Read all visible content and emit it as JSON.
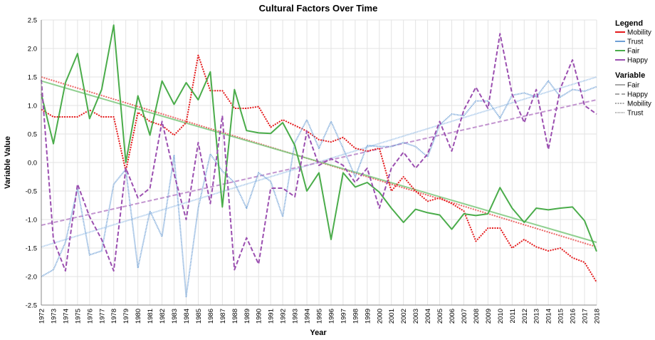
{
  "chart_data": {
    "type": "line",
    "title": "Cultural Factors Over Time",
    "xlabel": "Year",
    "ylabel": "Variable Value",
    "ylim": [
      -2.5,
      2.5
    ],
    "yticks": [
      2.5,
      2.0,
      1.5,
      1.0,
      0.5,
      0.0,
      -0.5,
      -1.0,
      -1.5,
      -2.0,
      -2.5
    ],
    "ytick_labels": [
      "2.5",
      "2.0",
      "1.5",
      "1.0",
      "0.5",
      "0.0",
      "-0.5",
      "-1.0",
      "-1.5",
      "-2.0",
      "-2.5"
    ],
    "x": [
      1972,
      1973,
      1974,
      1975,
      1976,
      1977,
      1978,
      1979,
      1980,
      1981,
      1982,
      1983,
      1984,
      1985,
      1986,
      1987,
      1988,
      1989,
      1990,
      1991,
      1992,
      1993,
      1994,
      1995,
      1996,
      1997,
      1998,
      1999,
      2000,
      2001,
      2002,
      2003,
      2004,
      2005,
      2006,
      2007,
      2008,
      2009,
      2010,
      2011,
      2012,
      2013,
      2014,
      2015,
      2016,
      2017,
      2018
    ],
    "grid": true,
    "legend_position": "right",
    "legend": {
      "title": "Legend",
      "entries": [
        {
          "label": "Mobility",
          "color": "#e41a1c"
        },
        {
          "label": "Trust",
          "color": "#6fa0d6"
        },
        {
          "label": "Fair",
          "color": "#4aac4a"
        },
        {
          "label": "Happy",
          "color": "#9b4fb0"
        }
      ]
    },
    "variable_legend": {
      "title": "Variable",
      "entries": [
        {
          "label": "Fair",
          "dash": "solid"
        },
        {
          "label": "Happy",
          "dash": "dashed"
        },
        {
          "label": "Mobility",
          "dash": "dotted"
        },
        {
          "label": "Trust",
          "dash": "dotted-fine"
        }
      ]
    },
    "series": [
      {
        "name": "Mobility",
        "color": "#e41a1c",
        "dash": "dotted",
        "values": [
          0.93,
          0.8,
          0.8,
          0.8,
          0.92,
          0.8,
          0.8,
          -0.15,
          0.88,
          0.72,
          0.65,
          0.48,
          0.7,
          1.88,
          1.26,
          1.26,
          0.95,
          0.95,
          0.98,
          0.62,
          0.75,
          0.65,
          0.55,
          0.4,
          0.36,
          0.44,
          0.25,
          0.2,
          0.25,
          -0.5,
          -0.25,
          -0.5,
          -0.68,
          -0.62,
          -0.72,
          -0.85,
          -1.38,
          -1.15,
          -1.15,
          -1.5,
          -1.35,
          -1.48,
          -1.55,
          -1.5,
          -1.67,
          -1.75,
          -2.1
        ]
      },
      {
        "name": "Trust",
        "color": "#6fa0d6",
        "dash": "dotted-fine",
        "values": [
          -2.0,
          -1.88,
          -1.4,
          -0.45,
          -1.62,
          -1.55,
          -0.38,
          -0.12,
          -1.85,
          -0.85,
          -1.3,
          0.12,
          -2.35,
          -0.8,
          0.15,
          -0.15,
          -0.35,
          -0.8,
          -0.18,
          -0.33,
          -0.95,
          0.35,
          0.75,
          0.25,
          0.72,
          0.25,
          -0.25,
          0.3,
          0.28,
          0.28,
          0.35,
          0.28,
          0.1,
          0.66,
          0.85,
          0.82,
          1.08,
          1.08,
          0.78,
          1.18,
          1.22,
          1.15,
          1.43,
          1.15,
          1.28,
          1.25,
          1.33
        ]
      },
      {
        "name": "Fair",
        "color": "#4aac4a",
        "dash": "solid",
        "values": [
          1.2,
          0.33,
          1.4,
          1.91,
          0.77,
          1.28,
          2.41,
          0.0,
          1.17,
          0.48,
          1.43,
          1.02,
          1.4,
          1.1,
          1.59,
          -0.78,
          1.28,
          0.56,
          0.52,
          0.51,
          0.7,
          0.3,
          -0.5,
          -0.18,
          -1.35,
          -0.18,
          -0.43,
          -0.35,
          -0.52,
          -0.8,
          -1.05,
          -0.82,
          -0.88,
          -0.92,
          -1.17,
          -0.9,
          -0.93,
          -0.9,
          -0.44,
          -0.8,
          -1.05,
          -0.8,
          -0.83,
          -0.8,
          -0.78,
          -1.02,
          -1.56
        ]
      },
      {
        "name": "Happy",
        "color": "#9b4fb0",
        "dash": "dashed",
        "values": [
          1.45,
          -1.35,
          -1.9,
          -0.38,
          -0.95,
          -1.35,
          -1.9,
          -0.1,
          -0.62,
          -0.45,
          0.72,
          -0.2,
          -1.0,
          0.35,
          -0.72,
          0.82,
          -1.88,
          -1.32,
          -1.78,
          -0.45,
          -0.45,
          -0.6,
          0.55,
          -0.05,
          0.07,
          -0.05,
          -0.35,
          -0.1,
          -0.8,
          -0.1,
          0.18,
          -0.1,
          0.15,
          0.72,
          0.2,
          0.92,
          1.32,
          0.95,
          2.26,
          1.2,
          0.7,
          1.28,
          0.23,
          1.3,
          1.8,
          1.0,
          0.85
        ]
      }
    ],
    "trendlines": [
      {
        "series": "Mobility",
        "color": "#e94b4b",
        "dash": "dotted",
        "start": [
          1972,
          1.5
        ],
        "end": [
          2018,
          -1.48
        ]
      },
      {
        "series": "Fair",
        "color": "#7dc87d",
        "dash": "solid",
        "start": [
          1972,
          1.43
        ],
        "end": [
          2018,
          -1.4
        ]
      },
      {
        "series": "Trust",
        "color": "#8ab5e3",
        "dash": "dotted-fine",
        "start": [
          1972,
          -1.48
        ],
        "end": [
          2018,
          1.5
        ]
      },
      {
        "series": "Happy",
        "color": "#b883c8",
        "dash": "dashed",
        "start": [
          1972,
          -1.1
        ],
        "end": [
          2018,
          1.1
        ]
      }
    ]
  }
}
